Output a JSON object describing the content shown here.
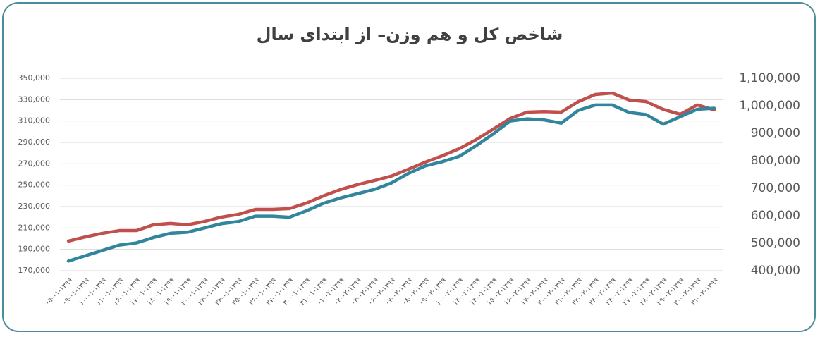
{
  "chart_data": {
    "type": "line",
    "title": "شاخص کل و هم وزن– از ابتدای سال",
    "categories": [
      "۰۵-۰۱-۱۳۹۹",
      "۰۹-۰۱-۱۳۹۹",
      "۱۰-۰۱-۱۳۹۹",
      "۱۱-۰۱-۱۳۹۹",
      "۱۶-۰۱-۱۳۹۹",
      "۱۷-۰۱-۱۳۹۹",
      "۱۸-۰۱-۱۳۹۹",
      "۱۹-۰۱-۱۳۹۹",
      "۲۰-۰۱-۱۳۹۹",
      "۲۳-۰۱-۱۳۹۹",
      "۲۴-۰۱-۱۳۹۹",
      "۲۵-۰۱-۱۳۹۹",
      "۲۶-۰۱-۱۳۹۹",
      "۲۷-۰۱-۱۳۹۹",
      "۳۰-۰۱-۱۳۹۹",
      "۳۱-۰۱-۱۳۹۹",
      "۰۱-۰۲-۱۳۹۹",
      "۰۲-۰۲-۱۳۹۹",
      "۰۳-۰۲-۱۳۹۹",
      "۰۶-۰۲-۱۳۹۹",
      "۰۷-۰۲-۱۳۹۹",
      "۰۸-۰۲-۱۳۹۹",
      "۰۹-۰۲-۱۳۹۹",
      "۱۰-۰۲-۱۳۹۹",
      "۱۳-۰۲-۱۳۹۹",
      "۱۴-۰۲-۱۳۹۹",
      "۱۵-۰۲-۱۳۹۹",
      "۱۶-۰۲-۱۳۹۹",
      "۱۷-۰۲-۱۳۹۹",
      "۲۰-۰۲-۱۳۹۹",
      "۲۱-۰۲-۱۳۹۹",
      "۲۲-۰۲-۱۳۹۹",
      "۲۳-۰۲-۱۳۹۹",
      "۲۴-۰۲-۱۳۹۹",
      "۲۷-۰۲-۱۳۹۹",
      "۲۸-۰۲-۱۳۹۹",
      "۲۹-۰۲-۱۳۹۹",
      "۳۰-۰۲-۱۳۹۹",
      "۳۱-۰۲-۱۳۹۹"
    ],
    "series": [
      {
        "color": "#31859c",
        "values": [
          179000,
          184000,
          189000,
          194000,
          196000,
          201000,
          205000,
          206000,
          210000,
          214000,
          216000,
          221000,
          221000,
          220000,
          226000,
          233000,
          238000,
          242000,
          246000,
          252000,
          261000,
          268000,
          272000,
          277000,
          287000,
          298000,
          310000,
          312000,
          311000,
          308000,
          320000,
          325000,
          325000,
          318000,
          316000,
          307000,
          314000,
          321000,
          322000
        ]
      },
      {
        "color": "#c0504d",
        "axis": "y2",
        "values": [
          508000,
          523000,
          536000,
          546000,
          546000,
          567000,
          572000,
          567000,
          579000,
          595000,
          605000,
          623000,
          623000,
          626000,
          646000,
          672000,
          695000,
          713000,
          728000,
          744000,
          769000,
          795000,
          818000,
          844000,
          877000,
          915000,
          954000,
          977000,
          979000,
          977000,
          1015000,
          1041000,
          1046000,
          1021000,
          1015000,
          987000,
          969000,
          1003000,
          985000
        ]
      }
    ],
    "ylim": [
      170000,
      350000
    ],
    "yticks": [
      {
        "value": 170000,
        "label": "170,000"
      },
      {
        "value": 190000,
        "label": "190,000"
      },
      {
        "value": 210000,
        "label": "210,000"
      },
      {
        "value": 230000,
        "label": "230,000"
      },
      {
        "value": 250000,
        "label": "250,000"
      },
      {
        "value": 270000,
        "label": "270,000"
      },
      {
        "value": 290000,
        "label": "290,000"
      },
      {
        "value": 310000,
        "label": "310,000"
      },
      {
        "value": 330000,
        "label": "330,000"
      },
      {
        "value": 350000,
        "label": "350,000"
      }
    ],
    "y2lim": [
      400000,
      1100000
    ],
    "y2ticks": [
      {
        "value": 400000,
        "label": "400,000"
      },
      {
        "value": 500000,
        "label": "500,000"
      },
      {
        "value": 600000,
        "label": "600,000"
      },
      {
        "value": 700000,
        "label": "700,000"
      },
      {
        "value": 800000,
        "label": "800,000"
      },
      {
        "value": 900000,
        "label": "900,000"
      },
      {
        "value": 1000000,
        "label": "1,000,000"
      },
      {
        "value": 1100000,
        "label": "1,100,000"
      }
    ],
    "grid": true
  }
}
